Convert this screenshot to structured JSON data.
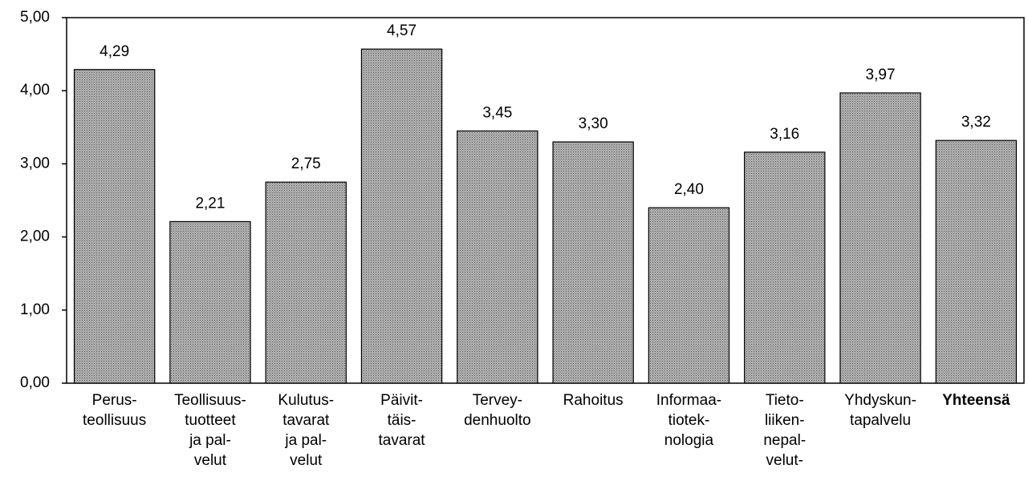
{
  "chart_data": {
    "type": "bar",
    "categories": [
      [
        "Perus-",
        "teollisuus"
      ],
      [
        "Teollisuus-",
        "tuotteet",
        "ja pal-",
        "velut"
      ],
      [
        "Kulutus-",
        "tavarat",
        "ja pal-",
        "velut"
      ],
      [
        "Päivit-",
        "täis-",
        "tavarat"
      ],
      [
        "Tervey-",
        "denhuolto"
      ],
      [
        "Rahoitus"
      ],
      [
        "Informaa-",
        "tiotek-",
        "nologia"
      ],
      [
        "Tieto-",
        "liiken-",
        "nepal-",
        "velut-"
      ],
      [
        "Yhdyskun-",
        "tapalvelu"
      ],
      [
        "Yhteensä"
      ]
    ],
    "values": [
      4.29,
      2.21,
      2.75,
      4.57,
      3.45,
      3.3,
      2.4,
      3.16,
      3.97,
      3.32
    ],
    "value_labels": [
      "4,29",
      "2,21",
      "2,75",
      "4,57",
      "3,45",
      "3,30",
      "2,40",
      "3,16",
      "3,97",
      "3,32"
    ],
    "color": "#b4b4b4",
    "ylim": [
      0,
      5
    ],
    "yticks": [
      {
        "value": 0,
        "label": "0,00"
      },
      {
        "value": 1,
        "label": "1,00"
      },
      {
        "value": 2,
        "label": "2,00"
      },
      {
        "value": 3,
        "label": "3,00"
      },
      {
        "value": 4,
        "label": "4,00"
      },
      {
        "value": 5,
        "label": "5,00"
      }
    ],
    "grid": false
  }
}
